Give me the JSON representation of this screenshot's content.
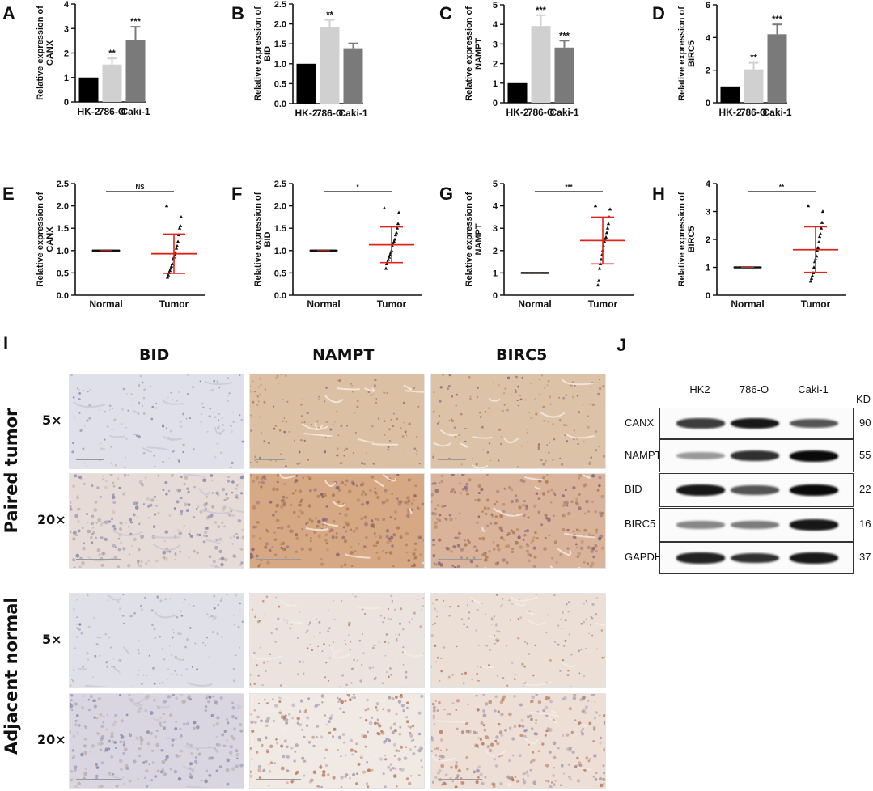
{
  "charts": [
    {
      "panel": "A",
      "type": "bar",
      "ylabel": "Relative expression of\nCANX",
      "categories": [
        "HK-2",
        "786-O",
        "Caki-1"
      ],
      "values": [
        1.0,
        1.53,
        2.52
      ],
      "errors": [
        0,
        0.25,
        0.55
      ],
      "ylim": [
        0,
        4
      ],
      "yticks": [
        0,
        1,
        2,
        3,
        4
      ],
      "sig": [
        "",
        "**",
        "***"
      ],
      "colors": [
        "#000000",
        "#d0d0d0",
        "#7a7a7a"
      ]
    },
    {
      "panel": "B",
      "type": "bar",
      "ylabel": "Relative expression of\nBID",
      "categories": [
        "HK-2",
        "786-O",
        "Caki-1"
      ],
      "values": [
        1.0,
        1.93,
        1.39
      ],
      "errors": [
        0,
        0.17,
        0.12
      ],
      "ylim": [
        0,
        2.5
      ],
      "yticks": [
        0.0,
        0.5,
        1.0,
        1.5,
        2.0,
        2.5
      ],
      "sig": [
        "",
        "**",
        ""
      ],
      "colors": [
        "#000000",
        "#d0d0d0",
        "#7a7a7a"
      ]
    },
    {
      "panel": "C",
      "type": "bar",
      "ylabel": "Relative expression of\nNAMPT",
      "categories": [
        "HK-2",
        "786-O",
        "Caki-1"
      ],
      "values": [
        1.0,
        3.92,
        2.82
      ],
      "errors": [
        0,
        0.55,
        0.35
      ],
      "ylim": [
        0,
        5
      ],
      "yticks": [
        0,
        1,
        2,
        3,
        4,
        5
      ],
      "sig": [
        "",
        "***",
        "***"
      ],
      "colors": [
        "#000000",
        "#d0d0d0",
        "#7a7a7a"
      ]
    },
    {
      "panel": "D",
      "type": "bar",
      "ylabel": "Relative expression of\nBIRC5",
      "categories": [
        "HK-2",
        "786-O",
        "Caki-1"
      ],
      "values": [
        1.0,
        2.05,
        4.2
      ],
      "errors": [
        0,
        0.4,
        0.6
      ],
      "ylim": [
        0,
        6
      ],
      "yticks": [
        0,
        2,
        4,
        6
      ],
      "sig": [
        "",
        "**",
        "***"
      ],
      "colors": [
        "#000000",
        "#d0d0d0",
        "#7a7a7a"
      ]
    },
    {
      "panel": "E",
      "type": "scatter",
      "ylabel": "Relative expression of\nCANX",
      "categories": [
        "Normal",
        "Tumor"
      ],
      "ylim": [
        0,
        2.5
      ],
      "yticks": [
        0.0,
        0.5,
        1.0,
        1.5,
        2.0,
        2.5
      ],
      "sig": "NS",
      "tumor_points": [
        2.0,
        1.75,
        1.55,
        1.5,
        1.35,
        1.2,
        1.1,
        1.05,
        0.95,
        0.9,
        0.85,
        0.8,
        0.7,
        0.65,
        0.6,
        0.55,
        0.5,
        0.45,
        0.4
      ],
      "mean": 0.93,
      "sd_high": 1.37,
      "sd_low": 0.49
    },
    {
      "panel": "F",
      "type": "scatter",
      "ylabel": "Relative expression of\nBID",
      "categories": [
        "Normal",
        "Tumor"
      ],
      "ylim": [
        0,
        2.5
      ],
      "yticks": [
        0.0,
        0.5,
        1.0,
        1.5,
        2.0,
        2.5
      ],
      "sig": "*",
      "tumor_points": [
        1.95,
        1.85,
        1.6,
        1.5,
        1.4,
        1.35,
        1.25,
        1.2,
        1.15,
        1.1,
        1.0,
        0.95,
        0.9,
        0.85,
        0.8,
        0.75,
        0.7,
        0.6
      ],
      "mean": 1.13,
      "sd_high": 1.53,
      "sd_low": 0.73
    },
    {
      "panel": "G",
      "type": "scatter",
      "ylabel": "Relative expression of\nNAMPT",
      "categories": [
        "Normal",
        "Tumor"
      ],
      "ylim": [
        0,
        5
      ],
      "yticks": [
        0,
        1,
        2,
        3,
        4,
        5
      ],
      "sig": "***",
      "tumor_points": [
        4.0,
        3.85,
        3.5,
        3.2,
        3.0,
        2.8,
        2.6,
        2.5,
        2.4,
        2.2,
        2.0,
        1.8,
        1.6,
        1.4,
        1.2,
        0.65,
        0.45
      ],
      "mean": 2.45,
      "sd_high": 3.5,
      "sd_low": 1.4
    },
    {
      "panel": "H",
      "type": "scatter",
      "ylabel": "Relative expression of\nBIRC5",
      "categories": [
        "Normal",
        "Tumor"
      ],
      "ylim": [
        0,
        4
      ],
      "yticks": [
        0,
        1,
        2,
        3,
        4
      ],
      "sig": "**",
      "tumor_points": [
        3.2,
        3.0,
        2.6,
        2.4,
        2.2,
        2.1,
        1.9,
        1.7,
        1.6,
        1.4,
        1.3,
        1.2,
        1.0,
        0.8,
        0.7,
        0.6,
        0.5
      ],
      "mean": 1.63,
      "sd_high": 2.45,
      "sd_low": 0.82
    }
  ],
  "ihc": {
    "panel": "I",
    "columns": [
      "BID",
      "NAMPT",
      "BIRC5"
    ],
    "groups": [
      {
        "label": "Paired tumor",
        "rows": [
          "5×",
          "20×"
        ]
      },
      {
        "label": "Adjacent normal",
        "rows": [
          "5×",
          "20×"
        ]
      }
    ],
    "tile_colors": [
      [
        "#dfe0ea",
        "#dcc0a4",
        "#dcc2a6"
      ],
      [
        "#e6dbd6",
        "#d6a883",
        "#dab49a"
      ],
      [
        "#e0e0e8",
        "#ece3de",
        "#ebdfd6"
      ],
      [
        "#d9d6e2",
        "#f1e9e4",
        "#eedfd6"
      ]
    ]
  },
  "western": {
    "panel": "J",
    "lanes": [
      "HK2",
      "786-O",
      "Caki-1"
    ],
    "unit": "KD",
    "proteins": [
      {
        "name": "CANX",
        "kd": "90",
        "bands": [
          0.8,
          0.95,
          0.7
        ]
      },
      {
        "name": "NAMPT",
        "kd": "55",
        "bands": [
          0.35,
          0.85,
          1.0
        ]
      },
      {
        "name": "BID",
        "kd": "22",
        "bands": [
          0.95,
          0.7,
          1.0
        ]
      },
      {
        "name": "BIRC5",
        "kd": "16",
        "bands": [
          0.45,
          0.5,
          0.95
        ]
      },
      {
        "name": "GAPDH",
        "kd": "37",
        "bands": [
          0.9,
          0.85,
          0.95
        ]
      }
    ]
  }
}
